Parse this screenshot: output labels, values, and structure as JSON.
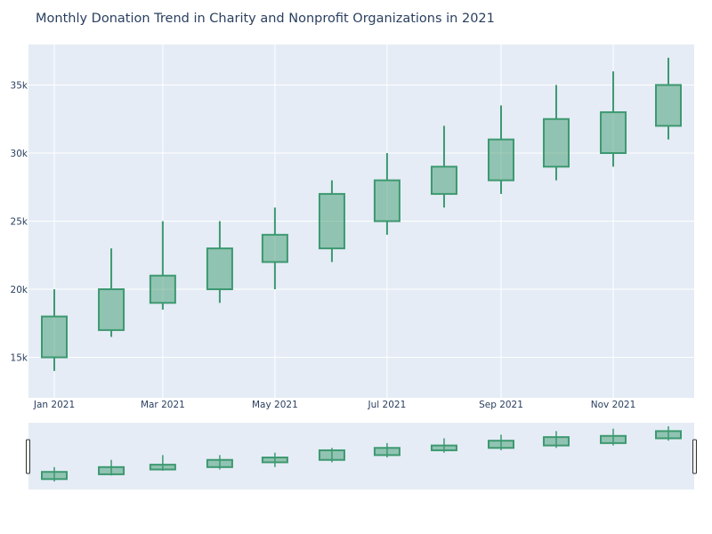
{
  "chart_data": {
    "type": "candlestick",
    "title": "Monthly Donation Trend in Charity and Nonprofit Organizations in 2021",
    "x_ticks": [
      "Jan 2021",
      "Mar 2021",
      "May 2021",
      "Jul 2021",
      "Sep 2021",
      "Nov 2021"
    ],
    "y_ticks": [
      "15k",
      "20k",
      "25k",
      "30k",
      "35k"
    ],
    "ylim": [
      12000,
      38000
    ],
    "range_slider": true,
    "colors": {
      "increasing": "#3d9970",
      "plot_bg": "#e5ecf6",
      "grid": "#ffffff",
      "text": "#2a3f5f"
    },
    "candles": [
      {
        "month": "2021-01",
        "open": 15000,
        "high": 20000,
        "low": 14000,
        "close": 18000
      },
      {
        "month": "2021-02",
        "open": 17000,
        "high": 23000,
        "low": 16500,
        "close": 20000
      },
      {
        "month": "2021-03",
        "open": 19000,
        "high": 25000,
        "low": 18500,
        "close": 21000
      },
      {
        "month": "2021-04",
        "open": 20000,
        "high": 25000,
        "low": 19000,
        "close": 23000
      },
      {
        "month": "2021-05",
        "open": 22000,
        "high": 26000,
        "low": 20000,
        "close": 24000
      },
      {
        "month": "2021-06",
        "open": 23000,
        "high": 28000,
        "low": 22000,
        "close": 27000
      },
      {
        "month": "2021-07",
        "open": 25000,
        "high": 30000,
        "low": 24000,
        "close": 28000
      },
      {
        "month": "2021-08",
        "open": 27000,
        "high": 32000,
        "low": 26000,
        "close": 29000
      },
      {
        "month": "2021-09",
        "open": 28000,
        "high": 33500,
        "low": 27000,
        "close": 31000
      },
      {
        "month": "2021-10",
        "open": 29000,
        "high": 35000,
        "low": 28000,
        "close": 32500
      },
      {
        "month": "2021-11",
        "open": 30000,
        "high": 36000,
        "low": 29000,
        "close": 33000
      },
      {
        "month": "2021-12",
        "open": 32000,
        "high": 37000,
        "low": 31000,
        "close": 35000
      }
    ]
  }
}
